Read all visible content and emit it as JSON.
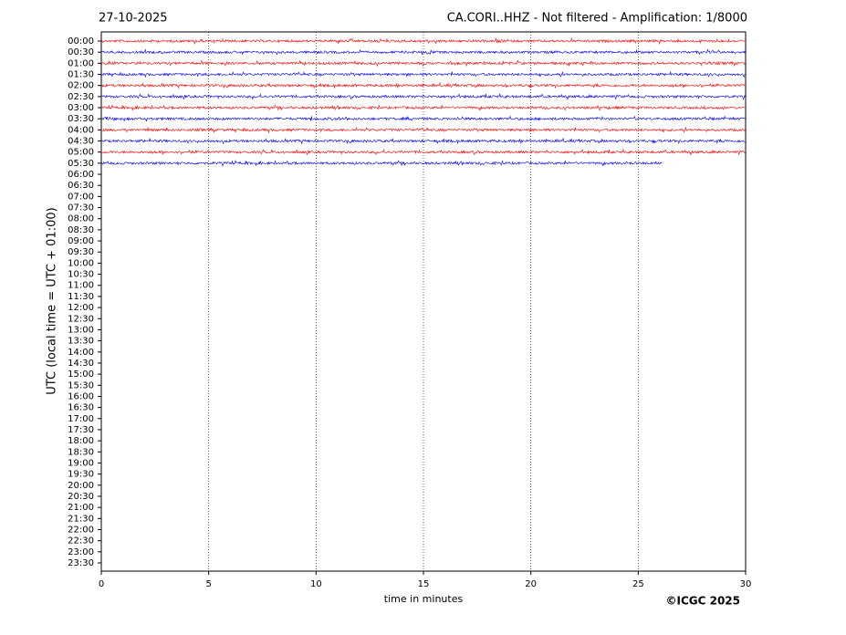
{
  "chart_data": {
    "type": "helicorder",
    "title_left": "27-10-2025",
    "title_right": "CA.CORI..HHZ - Not filtered - Amplification: 1/8000",
    "xlabel": "time in minutes",
    "ylabel": "UTC (local time = UTC + 01:00)",
    "credit": "©ICGC 2025",
    "xlim": [
      0,
      30
    ],
    "xticks": [
      0,
      5,
      10,
      15,
      20,
      25,
      30
    ],
    "grid": true,
    "rows": [
      "00:00",
      "00:30",
      "01:00",
      "01:30",
      "02:00",
      "02:30",
      "03:00",
      "03:30",
      "04:00",
      "04:30",
      "05:00",
      "05:30",
      "06:00",
      "06:30",
      "07:00",
      "07:30",
      "08:00",
      "08:30",
      "09:00",
      "09:30",
      "10:00",
      "10:30",
      "11:00",
      "11:30",
      "12:00",
      "12:30",
      "13:00",
      "13:30",
      "14:00",
      "14:30",
      "15:00",
      "15:30",
      "16:00",
      "16:30",
      "17:00",
      "17:30",
      "18:00",
      "18:30",
      "19:00",
      "19:30",
      "20:00",
      "20:30",
      "21:00",
      "21:30",
      "22:00",
      "22:30",
      "23:00",
      "23:30"
    ],
    "trace_colors": [
      "#ff0000",
      "#0000ff"
    ],
    "trace_end": [
      30,
      30,
      30,
      30,
      30,
      30,
      30,
      30,
      30,
      30,
      30,
      26.1
    ]
  }
}
